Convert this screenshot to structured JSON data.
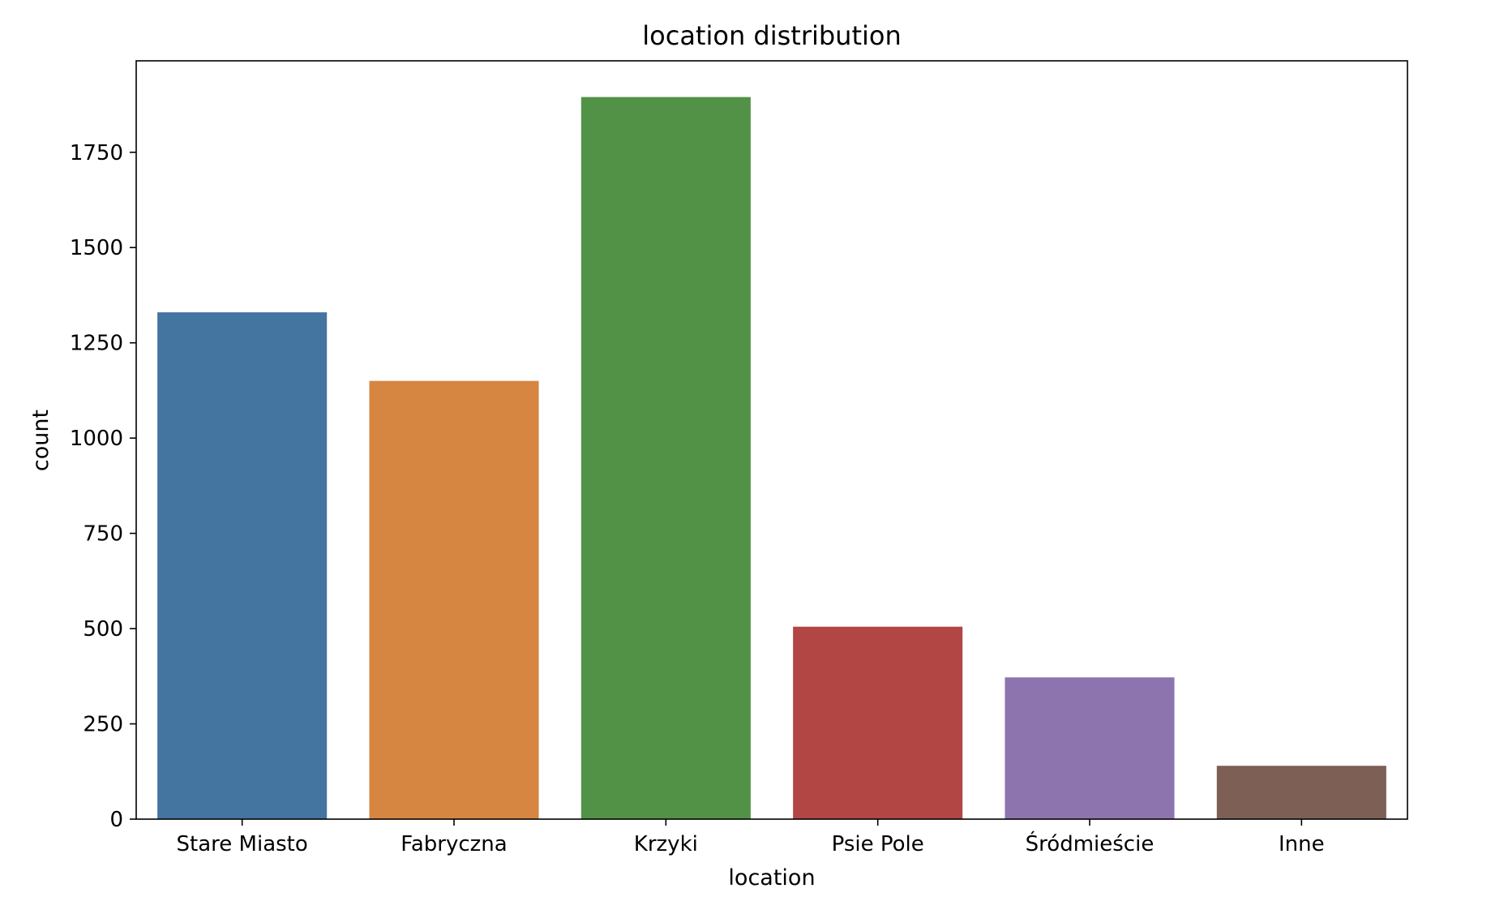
{
  "chart_data": {
    "type": "bar",
    "title": "location distribution",
    "xlabel": "location",
    "ylabel": "count",
    "categories": [
      "Stare Miasto",
      "Fabryczna",
      "Krzyki",
      "Psie Pole",
      "Śródmieście",
      "Inne"
    ],
    "values": [
      1330,
      1150,
      1895,
      505,
      372,
      140
    ],
    "colors": [
      "#4474a0",
      "#d68641",
      "#529246",
      "#b14645",
      "#8e74af",
      "#7e5f55"
    ],
    "ylim": [
      0,
      1990
    ],
    "yticks": [
      0,
      250,
      500,
      750,
      1000,
      1250,
      1500,
      1750
    ],
    "grid": false,
    "legend": "none"
  }
}
